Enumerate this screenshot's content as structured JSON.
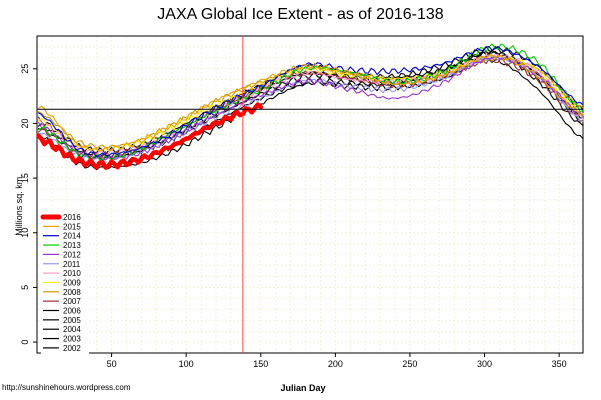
{
  "chart_data": {
    "type": "line",
    "title": "JAXA Global Ice Extent - as of 2016-138",
    "xlabel": "Julian Day",
    "ylabel": "Millions sq. km.",
    "source": "http://sunshinehours.wordpress.com",
    "xlim": [
      0,
      366
    ],
    "ylim": [
      -1,
      28
    ],
    "x_ticks": [
      "50",
      "100",
      "150",
      "200",
      "250",
      "300",
      "350"
    ],
    "y_ticks": [
      "0",
      "5",
      "10",
      "15",
      "20",
      "25"
    ],
    "grid": true,
    "legend_position": "bottom-left",
    "annotations": {
      "vertical_line_day": 138,
      "horizontal_line_value": 21.3
    },
    "anchor_days": [
      1,
      30,
      60,
      90,
      120,
      150,
      180,
      210,
      240,
      270,
      305,
      335,
      366
    ],
    "series": [
      {
        "name": "2016",
        "color": "#ff0000",
        "values": [
          18.6,
          16.5,
          16.4,
          17.9,
          20.0,
          21.5
        ]
      },
      {
        "name": "2015",
        "color": "#e6a300",
        "values": [
          21.6,
          17.9,
          18.0,
          19.8,
          22.1,
          23.9,
          25.2,
          24.6,
          23.6,
          24.3,
          26.2,
          24.4,
          20.8
        ]
      },
      {
        "name": "2014",
        "color": "#0000cc",
        "values": [
          20.9,
          17.5,
          17.4,
          19.0,
          21.4,
          23.4,
          25.4,
          24.9,
          24.8,
          25.4,
          26.9,
          25.3,
          21.7
        ]
      },
      {
        "name": "2013",
        "color": "#00cc00",
        "values": [
          19.7,
          17.1,
          17.2,
          19.1,
          21.2,
          23.1,
          25.0,
          24.7,
          23.8,
          24.6,
          27.0,
          25.7,
          21.2
        ]
      },
      {
        "name": "2012",
        "color": "#9933cc",
        "values": [
          19.9,
          17.2,
          17.0,
          18.6,
          20.8,
          22.6,
          23.9,
          23.1,
          22.3,
          23.6,
          26.0,
          24.5,
          20.7
        ]
      },
      {
        "name": "2011",
        "color": "#9999ee",
        "values": [
          19.2,
          16.9,
          17.0,
          18.6,
          20.6,
          22.3,
          23.9,
          23.4,
          23.1,
          24.0,
          26.0,
          24.4,
          20.2
        ]
      },
      {
        "name": "2010",
        "color": "#ff99cc",
        "values": [
          20.2,
          17.6,
          17.5,
          19.0,
          21.2,
          23.1,
          24.6,
          24.0,
          23.8,
          24.4,
          26.1,
          24.8,
          20.4
        ]
      },
      {
        "name": "2009",
        "color": "#ffee00",
        "values": [
          20.4,
          17.8,
          17.9,
          19.6,
          21.7,
          23.5,
          24.9,
          24.4,
          24.1,
          24.6,
          26.1,
          24.9,
          20.9
        ]
      },
      {
        "name": "2008",
        "color": "#cc9900",
        "values": [
          21.0,
          18.2,
          18.1,
          19.8,
          22.0,
          23.8,
          25.1,
          24.5,
          24.0,
          24.3,
          25.9,
          25.0,
          21.4
        ]
      },
      {
        "name": "2007",
        "color": "#993333",
        "values": [
          19.5,
          17.3,
          17.4,
          19.1,
          21.3,
          23.3,
          24.6,
          24.1,
          23.5,
          24.2,
          25.8,
          24.1,
          20.3
        ]
      },
      {
        "name": "2006",
        "color": "#000000",
        "values": [
          18.9,
          16.4,
          16.5,
          17.9,
          20.2,
          22.3,
          23.8,
          23.7,
          23.6,
          24.6,
          26.5,
          24.0,
          19.8
        ]
      },
      {
        "name": "2005",
        "color": "#000000",
        "values": [
          19.6,
          17.1,
          17.1,
          18.8,
          21.0,
          23.0,
          24.6,
          24.1,
          23.9,
          24.8,
          26.5,
          24.6,
          20.5
        ]
      },
      {
        "name": "2004",
        "color": "#000000",
        "values": [
          20.3,
          17.8,
          17.7,
          19.3,
          21.5,
          23.4,
          25.2,
          24.6,
          24.3,
          25.2,
          26.8,
          25.3,
          21.2
        ]
      },
      {
        "name": "2003",
        "color": "#000000",
        "values": [
          19.9,
          17.4,
          17.2,
          18.6,
          20.7,
          22.7,
          24.3,
          24.3,
          24.2,
          24.8,
          26.2,
          24.4,
          20.2
        ]
      },
      {
        "name": "2002",
        "color": "#000000",
        "values": [
          18.6,
          16.2,
          16.1,
          17.4,
          19.6,
          21.8,
          23.6,
          23.4,
          23.3,
          24.0,
          25.8,
          23.2,
          18.6
        ]
      }
    ]
  }
}
